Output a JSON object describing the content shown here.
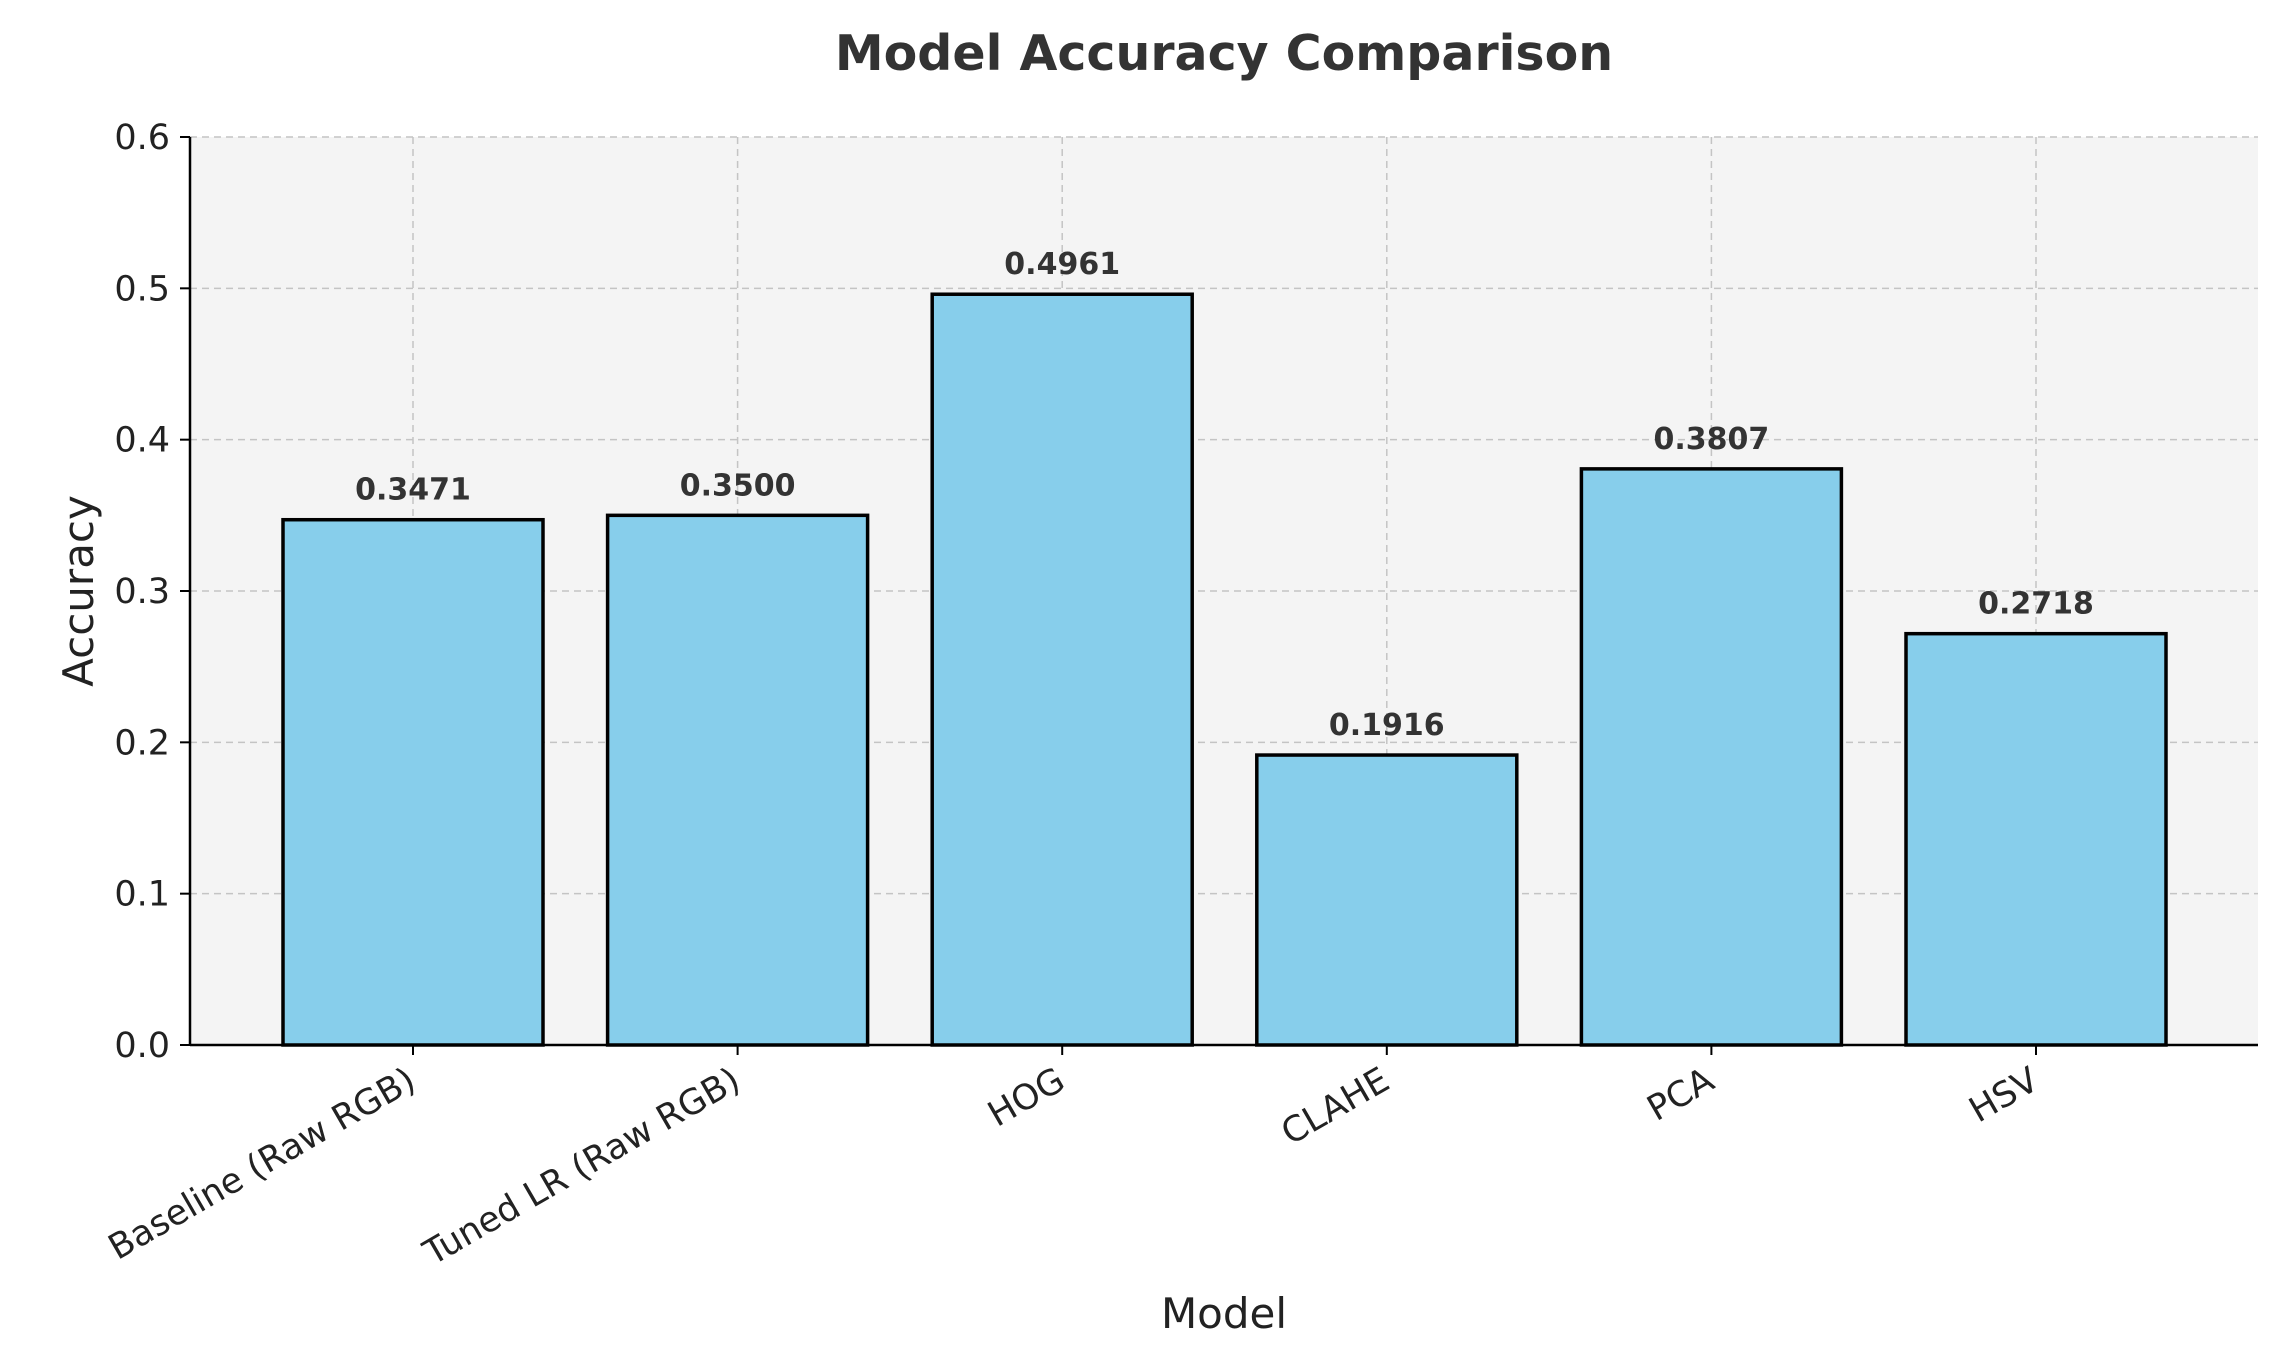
{
  "chart_data": {
    "type": "bar",
    "title": "Model Accuracy Comparison",
    "xlabel": "Model",
    "ylabel": "Accuracy",
    "categories": [
      "Baseline (Raw RGB)",
      "Tuned LR (Raw RGB)",
      "HOG",
      "CLAHE",
      "PCA",
      "HSV"
    ],
    "values": [
      0.3471,
      0.35,
      0.4961,
      0.1916,
      0.3807,
      0.2718
    ],
    "data_labels": [
      "0.3471",
      "0.3500",
      "0.4961",
      "0.1916",
      "0.3807",
      "0.2718"
    ],
    "ylim": [
      0,
      0.6
    ],
    "yticks": [
      "0.0",
      "0.1",
      "0.2",
      "0.3",
      "0.4",
      "0.5",
      "0.6"
    ],
    "ytick_values": [
      0,
      0.1,
      0.2,
      0.3,
      0.4,
      0.5,
      0.6
    ],
    "grid": true,
    "legend": "none",
    "colors": {
      "bar_fill": "#87CEEB",
      "bar_edge": "#000000",
      "plot_background": "#f4f4f4",
      "grid": "#c4c4c4"
    }
  }
}
